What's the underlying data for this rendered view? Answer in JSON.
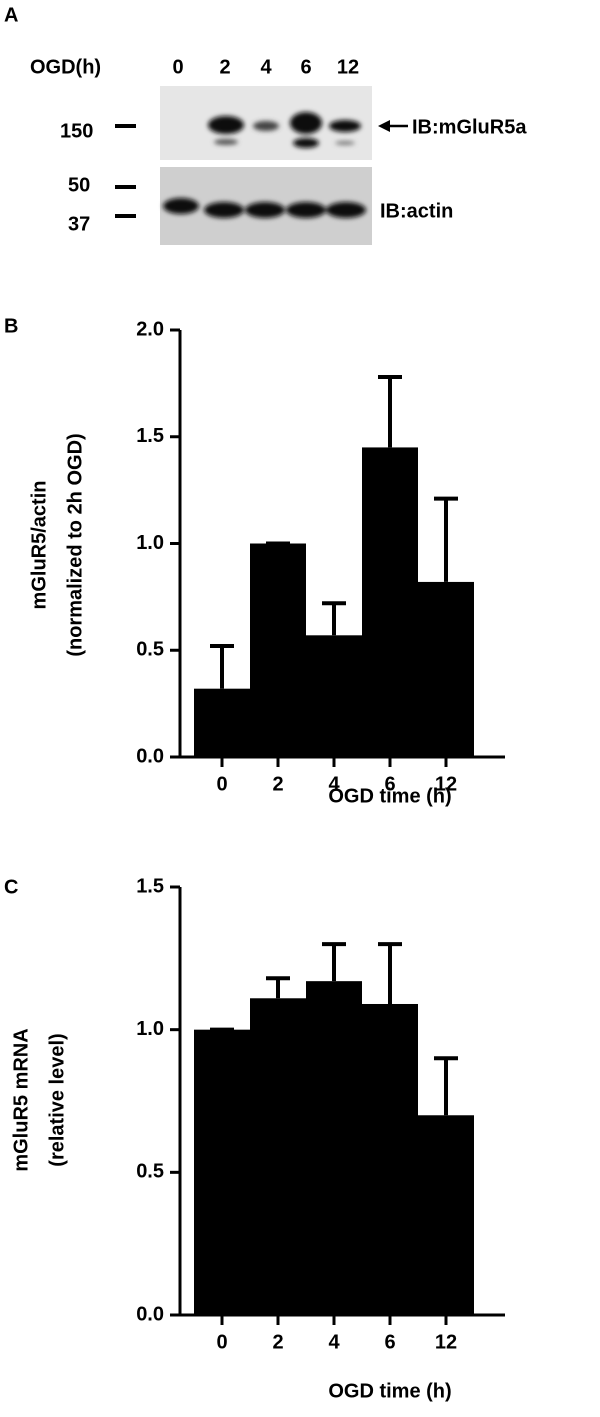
{
  "blot": {
    "panel_label": "A",
    "condition_label": "OGD(h)",
    "lanes": [
      "0",
      "2",
      "4",
      "6",
      "12"
    ],
    "markers": [
      "150",
      "50",
      "37"
    ],
    "targets": [
      "IB:mGluR5a",
      "IB:actin"
    ]
  },
  "chart_data": [
    {
      "type": "bar",
      "panel_label": "B",
      "ylabel": [
        "mGluR5/actin",
        "(normalized to 2h OGD)"
      ],
      "xlabel": "OGD time (h)",
      "categories": [
        "0",
        "2",
        "4",
        "6",
        "12"
      ],
      "values": [
        0.32,
        1.0,
        0.57,
        1.45,
        0.82
      ],
      "errors": [
        0.2,
        0,
        0.15,
        0.33,
        0.39
      ],
      "color": "#000000",
      "ylim": [
        0,
        2
      ],
      "yticks": [
        {
          "value": 0,
          "label": "0.0"
        },
        {
          "value": 0.5,
          "label": "0.5"
        },
        {
          "value": 1,
          "label": "1.0"
        },
        {
          "value": 1.5,
          "label": "1.5"
        },
        {
          "value": 2,
          "label": "2.0"
        }
      ]
    },
    {
      "type": "bar",
      "panel_label": "C",
      "ylabel": [
        "mGluR5 mRNA",
        "(relative level)"
      ],
      "xlabel": "OGD time (h)",
      "categories": [
        "0",
        "2",
        "4",
        "6",
        "12"
      ],
      "values": [
        1.0,
        1.11,
        1.17,
        1.09,
        0.7
      ],
      "errors": [
        0,
        0.07,
        0.13,
        0.21,
        0.2
      ],
      "color": "#000000",
      "ylim": [
        0,
        1.5
      ],
      "yticks": [
        {
          "value": 0,
          "label": "0.0"
        },
        {
          "value": 0.5,
          "label": "0.5"
        },
        {
          "value": 1,
          "label": "1.0"
        },
        {
          "value": 1.5,
          "label": "1.5"
        }
      ]
    }
  ]
}
